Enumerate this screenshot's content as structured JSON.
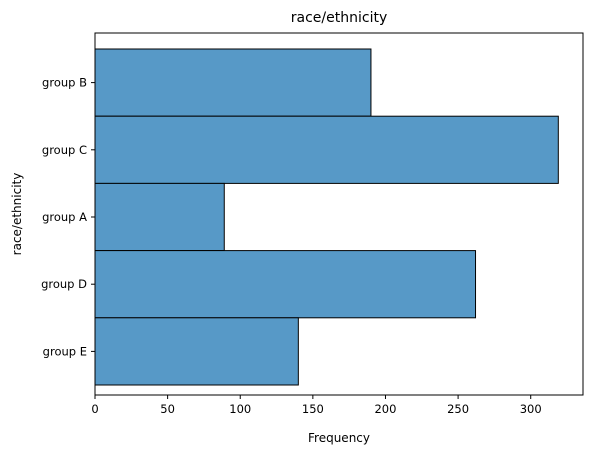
{
  "chart_data": {
    "type": "bar",
    "orientation": "horizontal",
    "title": "race/ethnicity",
    "xlabel": "Frequency",
    "ylabel": "race/ethnicity",
    "categories": [
      "group B",
      "group C",
      "group A",
      "group D",
      "group E"
    ],
    "values": [
      190,
      319,
      89,
      262,
      140
    ],
    "xlim": [
      0,
      336
    ],
    "xticks": [
      0,
      50,
      100,
      150,
      200,
      250,
      300
    ],
    "grid": false,
    "bar_color": "#5799c7",
    "edge_color": "#000000"
  }
}
